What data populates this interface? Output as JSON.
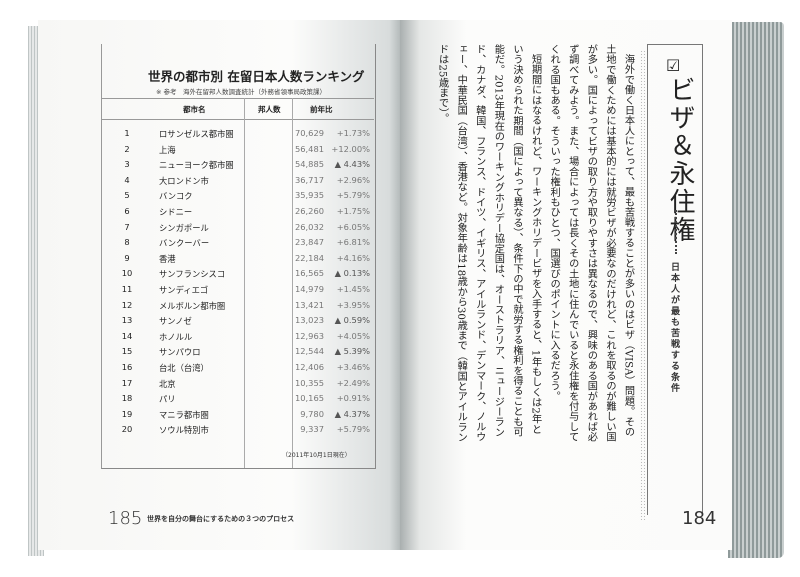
{
  "left_page": {
    "table": {
      "title": "世界の都市別 在留日本人数ランキング",
      "source": "※ 参考　海外在留邦人数調査統計（外務省領事局政策課）",
      "headers": {
        "city": "都市名",
        "count": "邦人数",
        "change": "前年比"
      },
      "rows": [
        {
          "rank": "1",
          "city": "ロサンゼルス都市圏",
          "count": "70,629",
          "change": "+1.73%"
        },
        {
          "rank": "2",
          "city": "上海",
          "count": "56,481",
          "change": "+12.00%"
        },
        {
          "rank": "3",
          "city": "ニューヨーク都市圏",
          "count": "54,885",
          "change": "▲ 4.43%"
        },
        {
          "rank": "4",
          "city": "大ロンドン市",
          "count": "36,717",
          "change": "+2.96%"
        },
        {
          "rank": "5",
          "city": "バンコク",
          "count": "35,935",
          "change": "+5.79%"
        },
        {
          "rank": "6",
          "city": "シドニー",
          "count": "26,260",
          "change": "+1.75%"
        },
        {
          "rank": "7",
          "city": "シンガポール",
          "count": "26,032",
          "change": "+6.05%"
        },
        {
          "rank": "8",
          "city": "バンクーバー",
          "count": "23,847",
          "change": "+6.81%"
        },
        {
          "rank": "9",
          "city": "香港",
          "count": "22,184",
          "change": "+4.16%"
        },
        {
          "rank": "10",
          "city": "サンフランシスコ",
          "count": "16,565",
          "change": "▲ 0.13%"
        },
        {
          "rank": "11",
          "city": "サンディエゴ",
          "count": "14,979",
          "change": "+1.45%"
        },
        {
          "rank": "12",
          "city": "メルボルン都市圏",
          "count": "13,421",
          "change": "+3.95%"
        },
        {
          "rank": "13",
          "city": "サンノゼ",
          "count": "13,023",
          "change": "▲ 0.59%"
        },
        {
          "rank": "14",
          "city": "ホノルル",
          "count": "12,963",
          "change": "+4.05%"
        },
        {
          "rank": "15",
          "city": "サンパウロ",
          "count": "12,544",
          "change": "▲ 5.39%"
        },
        {
          "rank": "16",
          "city": "台北（台湾）",
          "count": "12,406",
          "change": "+3.46%"
        },
        {
          "rank": "17",
          "city": "北京",
          "count": "10,355",
          "change": "+2.49%"
        },
        {
          "rank": "18",
          "city": "パリ",
          "count": "10,165",
          "change": "+0.91%"
        },
        {
          "rank": "19",
          "city": "マニラ都市圏",
          "count": "9,780",
          "change": "▲ 4.37%"
        },
        {
          "rank": "20",
          "city": "ソウル特別市",
          "count": "9,337",
          "change": "+5.79%"
        }
      ],
      "note": "（2011年10月1日現在）"
    },
    "page_number": "185",
    "running_head": "世界を自分の舞台にするための３つのプロセス"
  },
  "right_page": {
    "title": "ビザ＆永住権",
    "subtitle": "日本人が最も苦戦する条件",
    "check_icon": "checkbox-checked",
    "paragraphs": [
      "海外で働く日本人にとって、最も苦戦することが多いのはビザ（VISA）問題。その土地で働くためには基本的には就労ビザが必要なのだけれど、これを取るのが難しい国が多い。国によってビザの取り方や取りやすさは異なるので、興味のある国があれば必ず調べてみよう。また、場合によっては長くその土地に住んでいると永住権を付与してくれる国もある。そういった権利もひとつ、国選びのポイントに入るだろう。",
      "短期間にはなるけれど、ワーキングホリデービザを入手すると、1年もしくは2年という決められた期間（国によって異なる）、条件下の中で就労する権利を得ることも可能だ。2013年現在のワーキングホリデー協定国は、オーストラリア、ニュージーランド、カナダ、韓国、フランス、ドイツ、イギリス、アイルランド、デンマーク、ノルウェー、中華民国（台湾）、香港など。対象年齢は18歳から30歳まで（韓国とアイルランドは25歳まで）。"
    ],
    "page_number": "184"
  }
}
